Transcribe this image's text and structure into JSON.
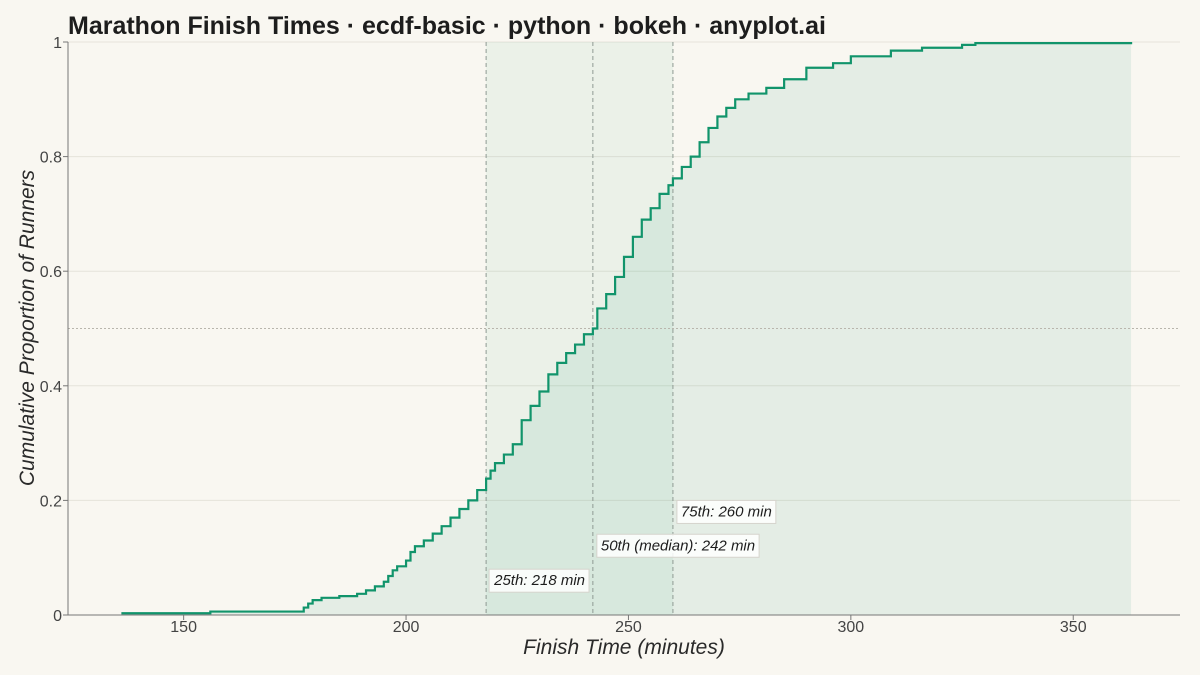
{
  "chart_data": {
    "type": "line",
    "subtype": "ecdf-step",
    "title": "Marathon Finish Times · ecdf-basic · python · bokeh · anyplot.ai",
    "xlabel": "Finish Time (minutes)",
    "ylabel": "Cumulative Proportion of Runners",
    "xlim": [
      124,
      374
    ],
    "ylim": [
      0,
      1.0
    ],
    "xticks": [
      150,
      200,
      250,
      300,
      350
    ],
    "yticks": [
      0,
      0.2,
      0.4,
      0.6,
      0.8,
      1
    ],
    "ytick_labels": [
      "0",
      "0.2",
      "0.4",
      "0.6",
      "0.8",
      "1"
    ],
    "grid": true,
    "line_color": "#11946b",
    "fill_color": "#11946b",
    "reference_line_y": 0.5,
    "quartile_band": [
      218,
      260
    ],
    "series": [
      {
        "points": [
          [
            136,
            0.003
          ],
          [
            155,
            0.003
          ],
          [
            156,
            0.006
          ],
          [
            175,
            0.006
          ],
          [
            177,
            0.013
          ],
          [
            178,
            0.02
          ],
          [
            179,
            0.026
          ],
          [
            181,
            0.03
          ],
          [
            185,
            0.033
          ],
          [
            189,
            0.037
          ],
          [
            191,
            0.043
          ],
          [
            193,
            0.05
          ],
          [
            195,
            0.058
          ],
          [
            196,
            0.068
          ],
          [
            197,
            0.078
          ],
          [
            198,
            0.085
          ],
          [
            200,
            0.095
          ],
          [
            201,
            0.11
          ],
          [
            202,
            0.12
          ],
          [
            204,
            0.13
          ],
          [
            206,
            0.142
          ],
          [
            208,
            0.155
          ],
          [
            210,
            0.17
          ],
          [
            212,
            0.185
          ],
          [
            214,
            0.2
          ],
          [
            216,
            0.218
          ],
          [
            218,
            0.238
          ],
          [
            219,
            0.252
          ],
          [
            220,
            0.265
          ],
          [
            222,
            0.28
          ],
          [
            224,
            0.298
          ],
          [
            226,
            0.34
          ],
          [
            228,
            0.365
          ],
          [
            230,
            0.39
          ],
          [
            232,
            0.42
          ],
          [
            234,
            0.44
          ],
          [
            236,
            0.457
          ],
          [
            238,
            0.472
          ],
          [
            240,
            0.49
          ],
          [
            242,
            0.5
          ],
          [
            243,
            0.535
          ],
          [
            245,
            0.56
          ],
          [
            247,
            0.59
          ],
          [
            249,
            0.625
          ],
          [
            251,
            0.66
          ],
          [
            253,
            0.69
          ],
          [
            255,
            0.71
          ],
          [
            257,
            0.735
          ],
          [
            259,
            0.75
          ],
          [
            260,
            0.762
          ],
          [
            262,
            0.782
          ],
          [
            264,
            0.8
          ],
          [
            266,
            0.825
          ],
          [
            268,
            0.85
          ],
          [
            270,
            0.87
          ],
          [
            272,
            0.885
          ],
          [
            274,
            0.9
          ],
          [
            277,
            0.91
          ],
          [
            281,
            0.92
          ],
          [
            285,
            0.935
          ],
          [
            290,
            0.955
          ],
          [
            296,
            0.963
          ],
          [
            300,
            0.975
          ],
          [
            309,
            0.985
          ],
          [
            316,
            0.99
          ],
          [
            325,
            0.995
          ],
          [
            328,
            0.998
          ],
          [
            363,
            1.0
          ]
        ]
      }
    ],
    "percentiles": [
      {
        "x": 218,
        "label": "25th: 218 min",
        "label_y": 0.052
      },
      {
        "x": 242,
        "label": "50th (median): 242 min",
        "label_y": 0.113
      },
      {
        "x": 260,
        "label": "75th: 260 min",
        "label_y": 0.172
      }
    ]
  }
}
